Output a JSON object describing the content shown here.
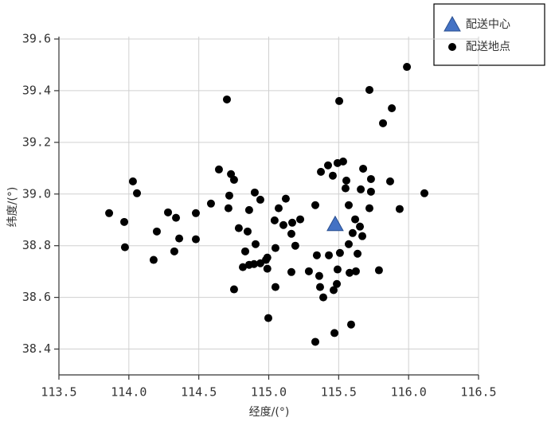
{
  "chart_data": {
    "type": "scatter",
    "xlabel": "经度/(°)",
    "ylabel": "纬度/(°)",
    "xlim": [
      113.5,
      116.5
    ],
    "xticks": [
      {
        "value": 113.5,
        "label": "113.5"
      },
      {
        "value": 114.0,
        "label": "114.0"
      },
      {
        "value": 114.5,
        "label": "114.5"
      },
      {
        "value": 115.0,
        "label": "115.0"
      },
      {
        "value": 115.5,
        "label": "115.5"
      },
      {
        "value": 116.0,
        "label": "116.0"
      },
      {
        "value": 116.5,
        "label": "116.5"
      }
    ],
    "ylim": [
      38.3,
      39.6
    ],
    "yticks": [
      38.4,
      38.6,
      38.8,
      {
        "value": 39.0,
        "label": "39.0"
      },
      39.2,
      39.4,
      39.6
    ],
    "grid": true,
    "legend": "upper right outside",
    "series": [
      {
        "name": "配送中心",
        "color": "#4472c4",
        "marker": "triangle",
        "x": [
          115.475
        ],
        "values": [
          38.883
        ]
      },
      {
        "name": "配送地点",
        "color": "#000000",
        "marker": "circle",
        "x": [
          115.988,
          115.72,
          115.504,
          115.88,
          115.817,
          114.701,
          114.644,
          114.73,
          114.752,
          114.029,
          114.058,
          113.859,
          113.967,
          113.972,
          114.2,
          114.28,
          114.337,
          114.36,
          114.325,
          114.177,
          114.479,
          114.479,
          114.587,
          114.718,
          114.712,
          114.786,
          114.849,
          114.86,
          114.9,
          114.94,
          114.906,
          114.832,
          114.815,
          114.86,
          114.895,
          114.94,
          114.98,
          114.99,
          114.752,
          114.99,
          115.048,
          114.997,
          115.048,
          115.042,
          115.071,
          115.122,
          115.105,
          115.162,
          115.168,
          115.225,
          115.19,
          115.162,
          115.287,
          115.333,
          115.344,
          115.361,
          115.367,
          115.39,
          115.333,
          115.43,
          115.373,
          115.424,
          115.458,
          115.492,
          115.532,
          115.549,
          115.555,
          115.572,
          115.618,
          115.6,
          115.572,
          115.492,
          115.509,
          115.487,
          115.464,
          115.47,
          115.589,
          115.578,
          115.623,
          115.635,
          115.652,
          115.669,
          115.675,
          115.658,
          115.72,
          115.731,
          115.731,
          115.868,
          115.936,
          115.788,
          116.113
        ],
        "values": [
          39.492,
          39.403,
          39.36,
          39.332,
          39.274,
          39.366,
          39.095,
          39.077,
          39.055,
          39.049,
          39.003,
          38.926,
          38.892,
          38.794,
          38.855,
          38.929,
          38.908,
          38.828,
          38.778,
          38.745,
          38.926,
          38.825,
          38.963,
          38.994,
          38.945,
          38.868,
          38.855,
          38.938,
          39.006,
          38.978,
          38.806,
          38.778,
          38.717,
          38.726,
          38.729,
          38.732,
          38.745,
          38.754,
          38.631,
          38.711,
          38.64,
          38.52,
          38.791,
          38.898,
          38.945,
          38.982,
          38.88,
          38.846,
          38.889,
          38.902,
          38.8,
          38.698,
          38.701,
          38.957,
          38.763,
          38.683,
          38.64,
          38.6,
          38.428,
          38.763,
          39.086,
          39.111,
          39.071,
          39.12,
          39.126,
          39.022,
          39.052,
          38.957,
          38.902,
          38.849,
          38.806,
          38.708,
          38.772,
          38.652,
          38.628,
          38.462,
          38.495,
          38.695,
          38.701,
          38.769,
          38.874,
          38.837,
          39.098,
          39.018,
          38.945,
          39.009,
          39.058,
          39.049,
          38.942,
          38.705,
          39.003
        ]
      }
    ]
  }
}
